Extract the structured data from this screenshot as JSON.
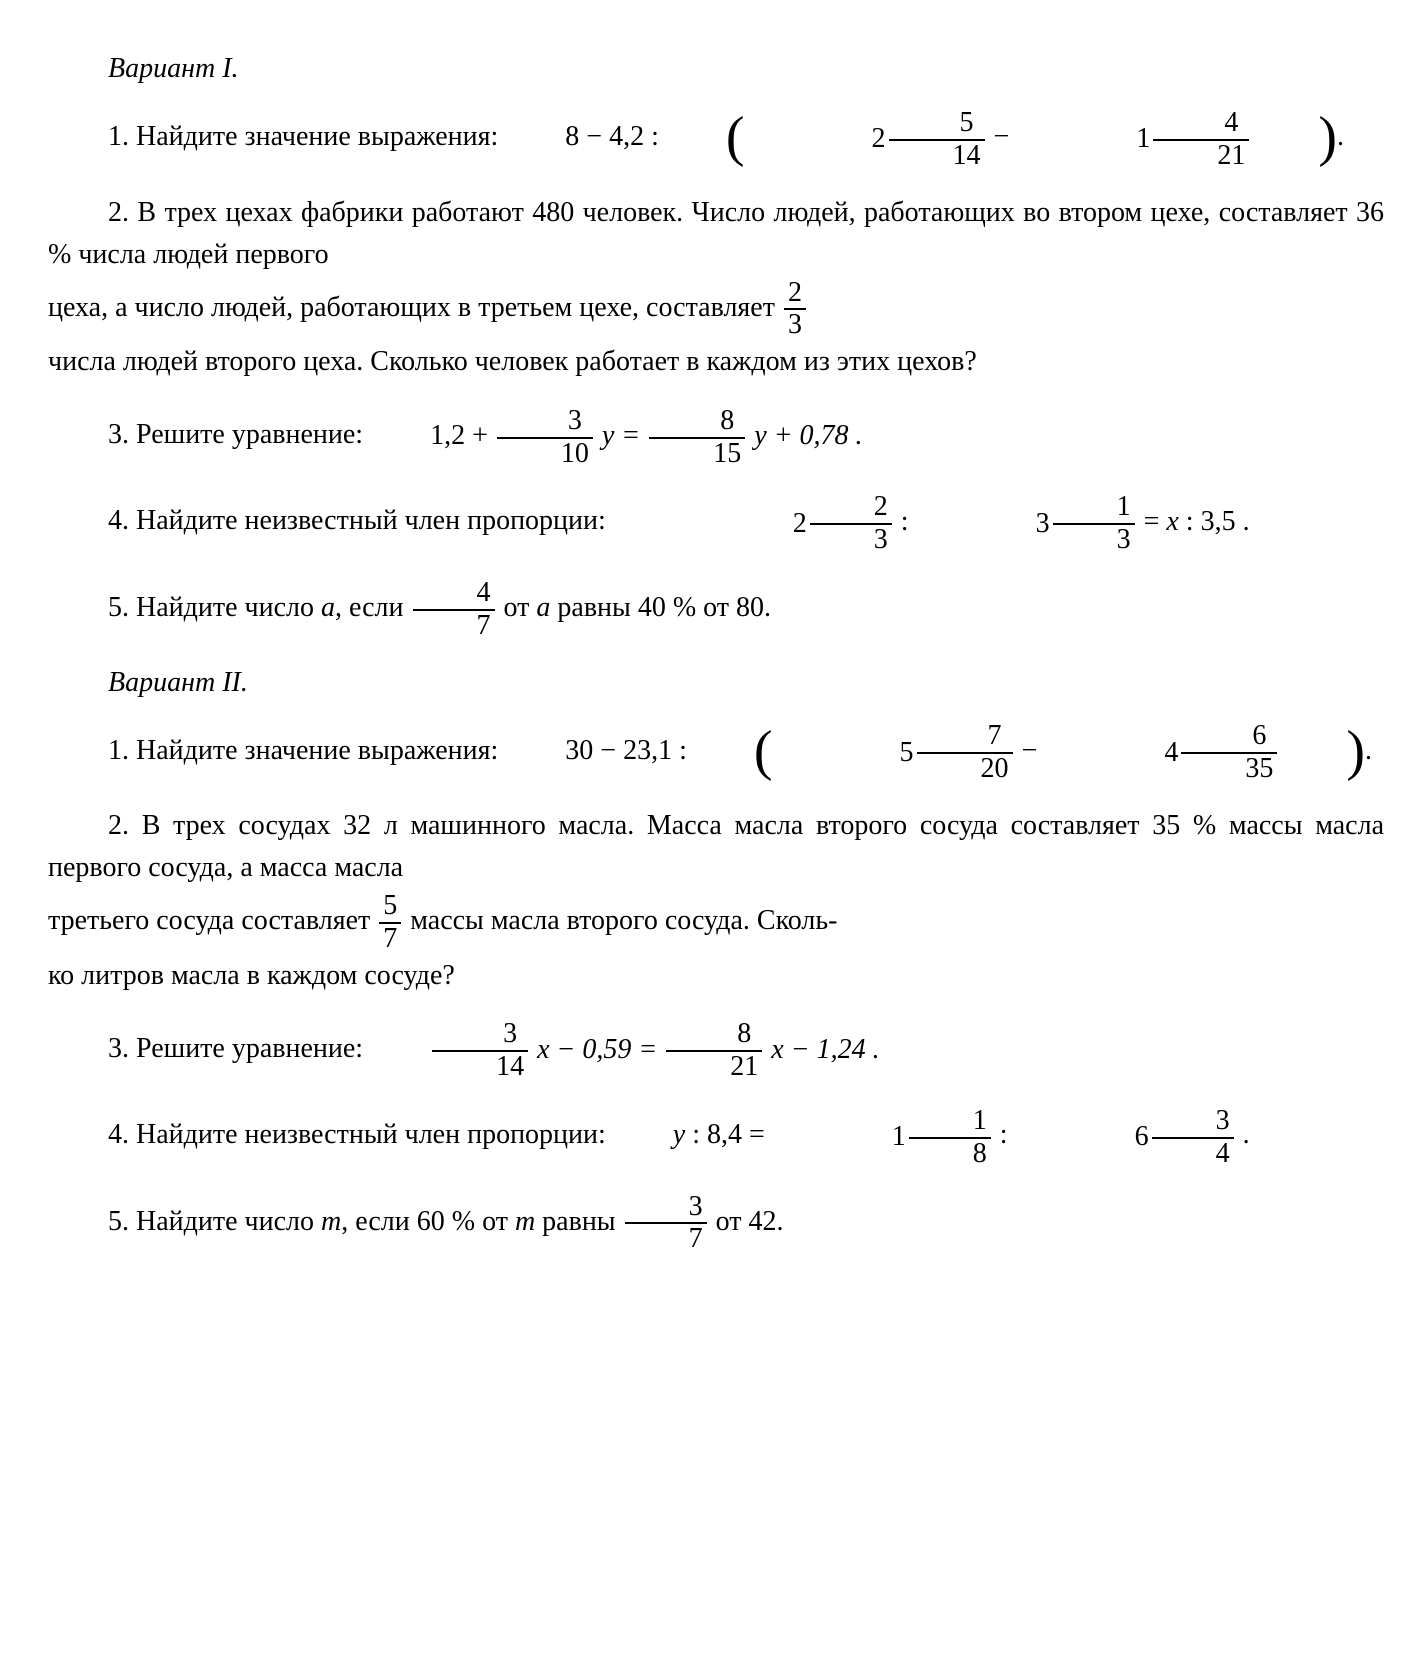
{
  "variant1": {
    "heading": "Вариант I.",
    "p1": {
      "num": "1.",
      "text": "Найдите значение выражения:",
      "expr_start": "8 − 4,2 :",
      "lp": "(",
      "m1_whole": "2",
      "m1_num": "5",
      "m1_den": "14",
      "minus": " − ",
      "m2_whole": "1",
      "m2_num": "4",
      "m2_den": "21",
      "rp": ")",
      "dot": "."
    },
    "p2": {
      "num": "2.",
      "line1": "В трех цехах фабрики работают 480 человек. Число людей, работающих во втором цехе, составляет 36 % числа людей первого",
      "line2a": "цеха, а число людей, работающих в третьем цехе, составляет",
      "frac_num": "2",
      "frac_den": "3",
      "line3": "числа людей второго цеха. Сколько человек работает в каждом из этих цехов?"
    },
    "p3": {
      "num": "3.",
      "text": "Решите уравнение:",
      "a": "1,2 +",
      "f1_num": "3",
      "f1_den": "10",
      "y1": "y =",
      "f2_num": "8",
      "f2_den": "15",
      "y2": "y + 0,78 ."
    },
    "p4": {
      "num": "4.",
      "text": "Найдите неизвестный член пропорции:",
      "m1_whole": "2",
      "m1_num": "2",
      "m1_den": "3",
      "colon1": " : ",
      "m2_whole": "3",
      "m2_num": "1",
      "m2_den": "3",
      "eq": " = ",
      "x": "x",
      "rest": " : 3,5 ."
    },
    "p5": {
      "num": "5.",
      "text1": "Найдите число ",
      "a": "a",
      "text2": ", если",
      "f_num": "4",
      "f_den": "7",
      "text3": "от ",
      "a2": "a",
      "text4": " равны 40 % от 80."
    }
  },
  "variant2": {
    "heading": "Вариант II.",
    "p1": {
      "num": "1.",
      "text": "Найдите значение выражения:",
      "expr_start": "30 − 23,1 :",
      "lp": "(",
      "m1_whole": "5",
      "m1_num": "7",
      "m1_den": "20",
      "minus": " − ",
      "m2_whole": "4",
      "m2_num": "6",
      "m2_den": "35",
      "rp": ")",
      "dot": "."
    },
    "p2": {
      "num": "2.",
      "line1": "В трех сосудах 32 л машинного масла. Масса масла второго сосуда составляет 35 % массы масла первого сосуда, а масса масла",
      "line2a": "третьего сосуда составляет",
      "frac_num": "5",
      "frac_den": "7",
      "line2b": "массы масла второго сосуда. Сколь-",
      "line3": "ко литров масла в каждом сосуде?"
    },
    "p3": {
      "num": "3.",
      "text": "Решите уравнение:",
      "f1_num": "3",
      "f1_den": "14",
      "x1": "x − 0,59 =",
      "f2_num": "8",
      "f2_den": "21",
      "x2": "x − 1,24 ."
    },
    "p4": {
      "num": "4.",
      "text": "Найдите неизвестный член пропорции:",
      "y": "y",
      "a": " : 8,4 = ",
      "m1_whole": "1",
      "m1_num": "1",
      "m1_den": "8",
      "colon": " : ",
      "m2_whole": "6",
      "m2_num": "3",
      "m2_den": "4",
      "dot": " ."
    },
    "p5": {
      "num": "5.",
      "text1": "Найдите число ",
      "m": "m",
      "text2": ", если 60 % от ",
      "m2": "m",
      "text3": " равны",
      "f_num": "3",
      "f_den": "7",
      "text4": "от 42."
    }
  }
}
